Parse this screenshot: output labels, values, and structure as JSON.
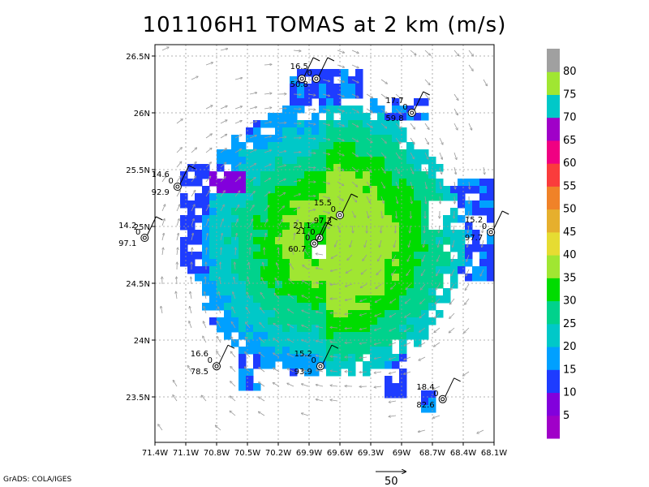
{
  "title": "101106H1 TOMAS at 2 km (m/s)",
  "credit": "GrADS: COLA/IGES",
  "chart_data": {
    "type": "heatmap",
    "title": "101106H1 TOMAS at 2 km (m/s)",
    "x_ticks": [
      "71.4W",
      "71.1W",
      "70.8W",
      "70.5W",
      "70.2W",
      "69.9W",
      "69.6W",
      "69.3W",
      "69W",
      "68.7W",
      "68.4W",
      "68.1W"
    ],
    "y_ticks": [
      "26.5N",
      "26N",
      "25.5N",
      "25N",
      "24.5N",
      "24N",
      "23.5N"
    ],
    "xlim": [
      -71.4,
      -68.1
    ],
    "ylim": [
      23.1,
      26.6
    ],
    "grid": true,
    "storm_center": {
      "lon": -69.78,
      "lat": 24.9
    },
    "colorbar": {
      "levels": [
        "5",
        "10",
        "15",
        "20",
        "25",
        "30",
        "35",
        "40",
        "45",
        "50",
        "55",
        "60",
        "65",
        "70",
        "75",
        "80"
      ],
      "colors": [
        "#a000c8",
        "#8200dc",
        "#1e3cff",
        "#00a0ff",
        "#00c8c8",
        "#00d28c",
        "#00dc00",
        "#a0e632",
        "#e6dc32",
        "#e6af2d",
        "#f08228",
        "#fa3c3c",
        "#f00082",
        "#a000c8",
        "#00c8c8",
        "#a0e632",
        "#a0a0a0"
      ]
    },
    "stations": [
      {
        "lon": -69.83,
        "lat": 26.3,
        "labels": [
          "16.5",
          "0",
          "50.8"
        ]
      },
      {
        "lon": -69.97,
        "lat": 26.3,
        "labels": []
      },
      {
        "lon": -68.9,
        "lat": 26.0,
        "labels": [
          "17.7",
          "0",
          "59.8"
        ]
      },
      {
        "lon": -71.18,
        "lat": 25.35,
        "labels": [
          "14.6",
          "0",
          "92.9"
        ]
      },
      {
        "lon": -71.5,
        "lat": 24.9,
        "labels": [
          "14.2",
          "0",
          "97.1"
        ]
      },
      {
        "lon": -69.6,
        "lat": 25.1,
        "labels": [
          "15.5",
          "0",
          "97.3"
        ]
      },
      {
        "lon": -69.8,
        "lat": 24.9,
        "labels": [
          "21.1",
          "0"
        ]
      },
      {
        "lon": -69.85,
        "lat": 24.85,
        "labels": [
          "21",
          "0",
          "60.7"
        ]
      },
      {
        "lon": -68.13,
        "lat": 24.95,
        "labels": [
          "15.2",
          "0",
          "97.7"
        ]
      },
      {
        "lon": -70.8,
        "lat": 23.77,
        "labels": [
          "16.6",
          "0",
          "78.5"
        ]
      },
      {
        "lon": -69.79,
        "lat": 23.77,
        "labels": [
          "15.2",
          "0",
          "93.9"
        ]
      },
      {
        "lon": -68.6,
        "lat": 23.48,
        "labels": [
          "18.4",
          "0",
          "82.6"
        ]
      }
    ],
    "vector_legend": {
      "value": "50"
    }
  }
}
